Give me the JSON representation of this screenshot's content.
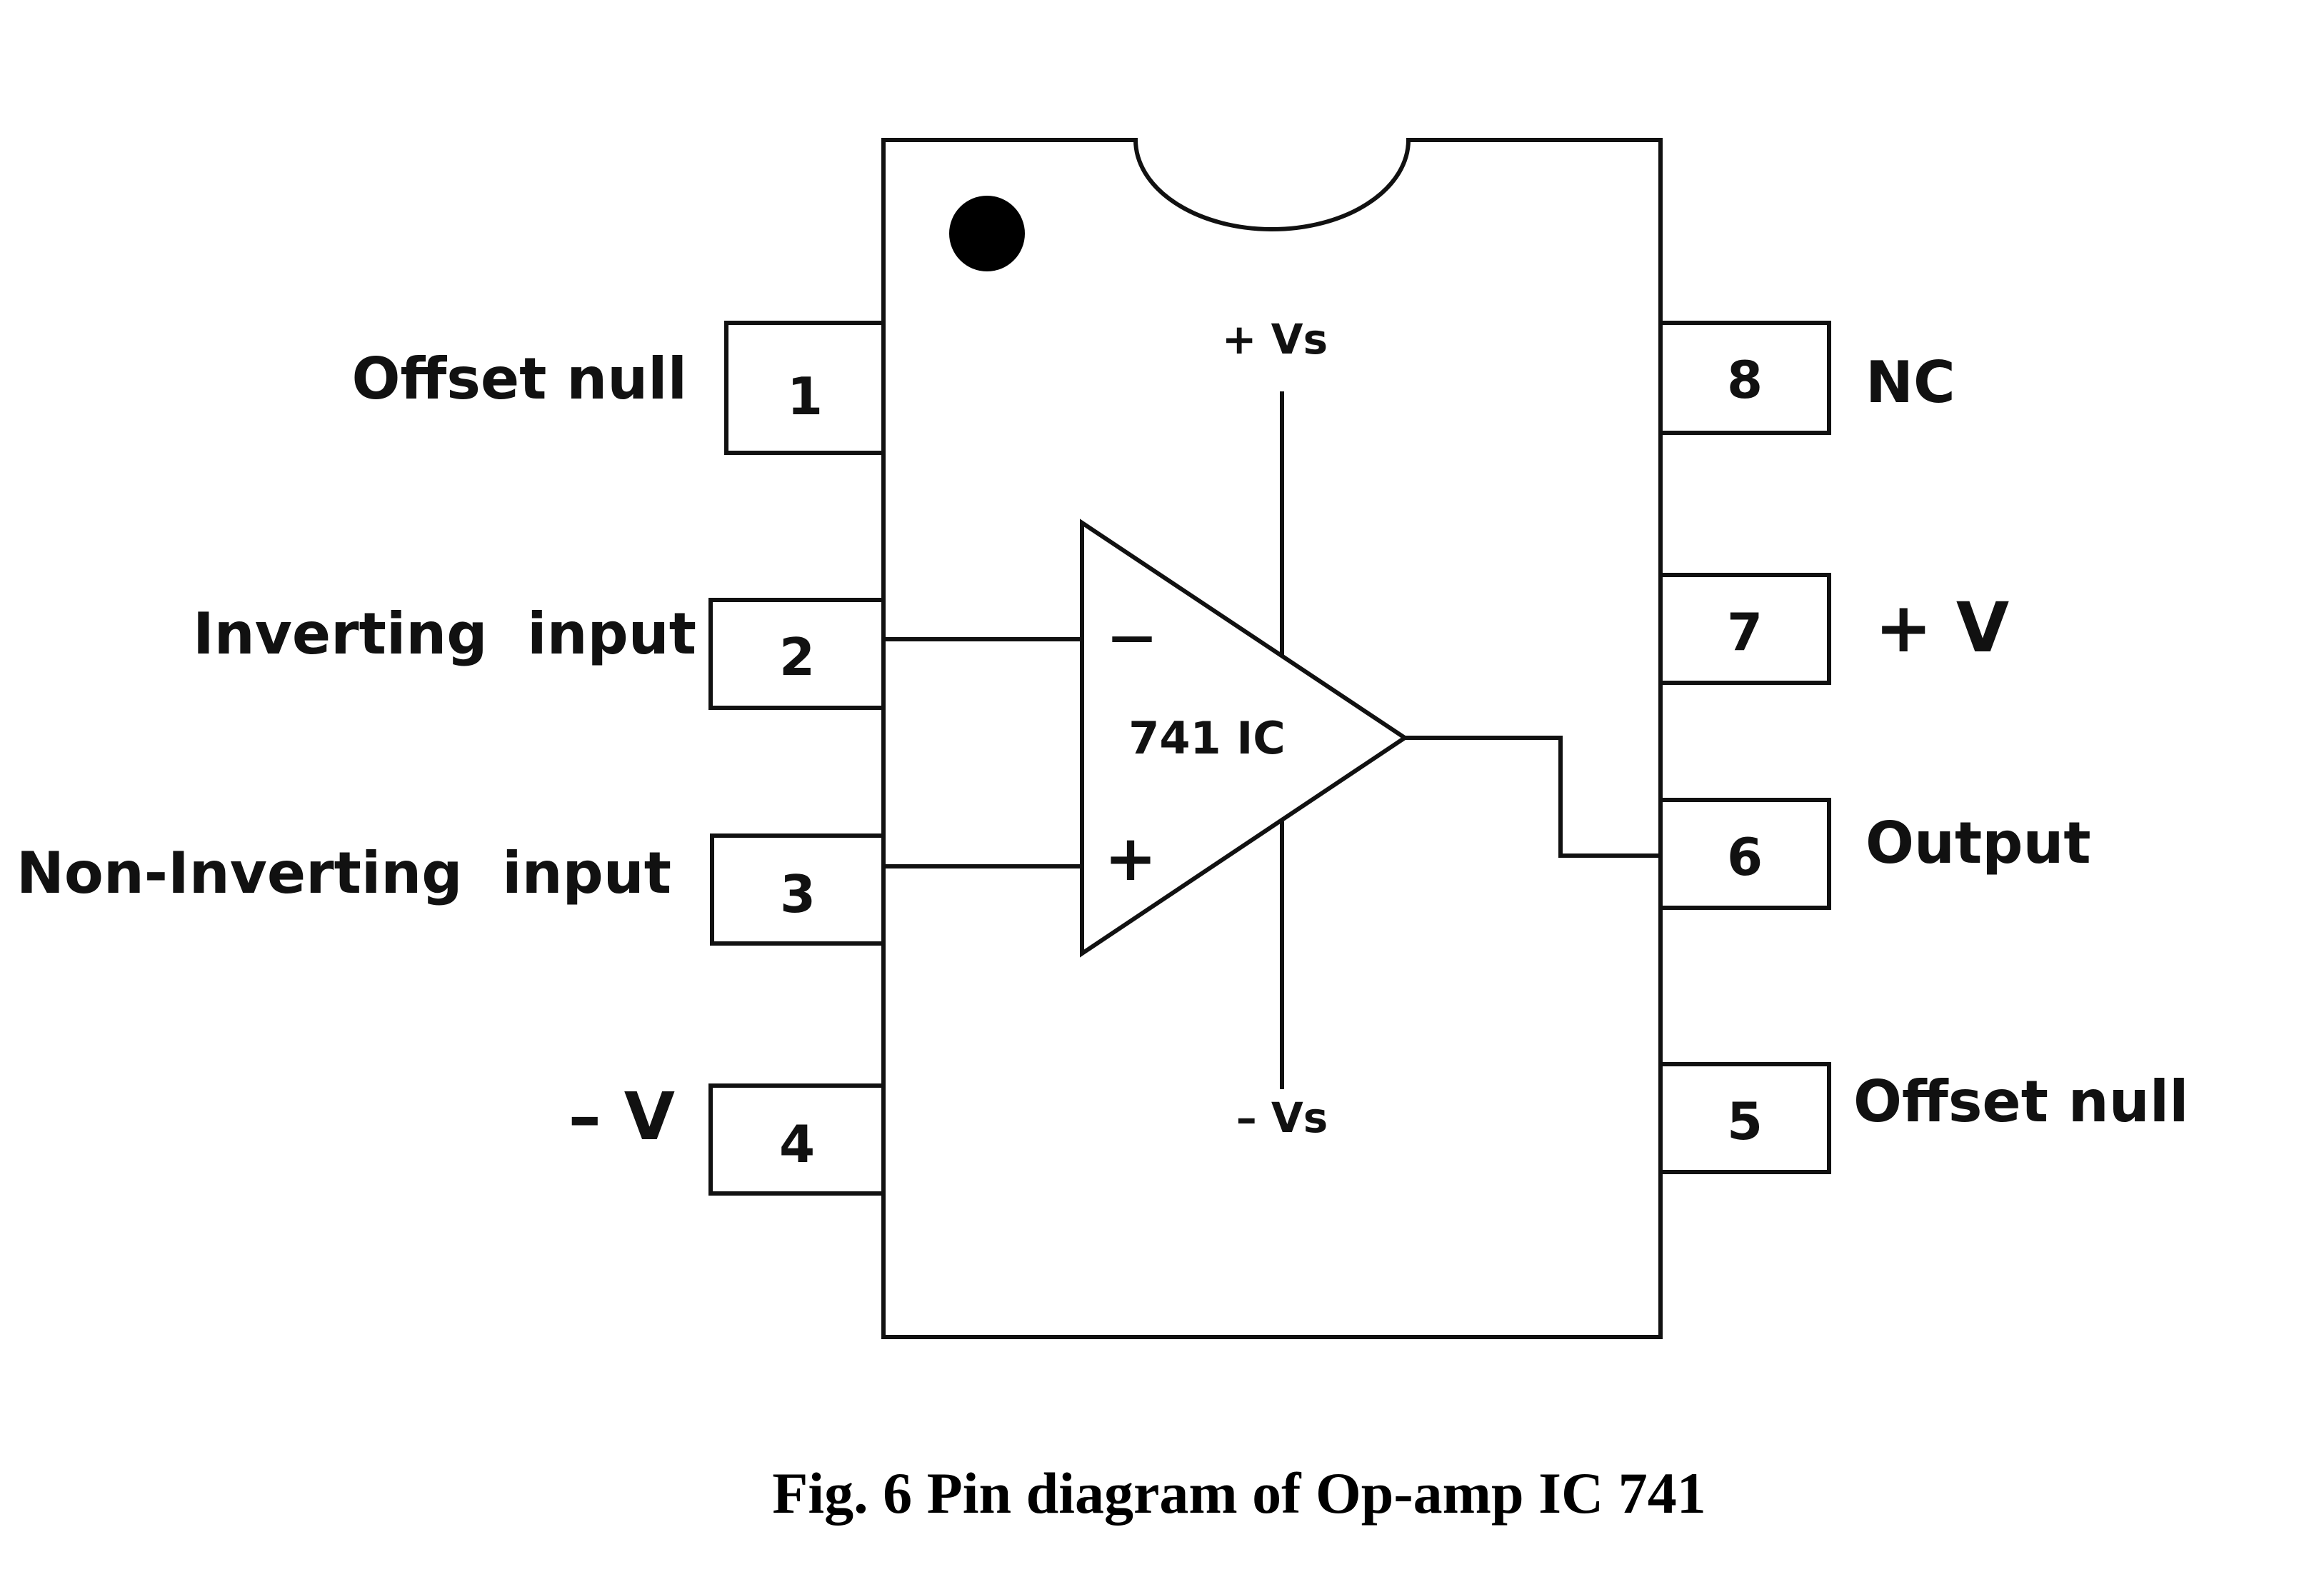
{
  "ic": {
    "name": "741 IC",
    "supply_positive": "+ Vs",
    "supply_negative": "– Vs",
    "inverting_symbol": "—",
    "noninverting_symbol": "+"
  },
  "pins": {
    "p1": {
      "number": "1",
      "label": "Offset null"
    },
    "p2": {
      "number": "2",
      "label": "Inverting  input"
    },
    "p3": {
      "number": "3",
      "label": "Non-Inverting  input"
    },
    "p4": {
      "number": "4",
      "label": "– V"
    },
    "p5": {
      "number": "5",
      "label": "Offset null"
    },
    "p6": {
      "number": "6",
      "label": "Output"
    },
    "p7": {
      "number": "7",
      "label": "+ V"
    },
    "p8": {
      "number": "8",
      "label": "NC"
    }
  },
  "caption": "Fig. 6 Pin diagram of Op-amp IC 741"
}
